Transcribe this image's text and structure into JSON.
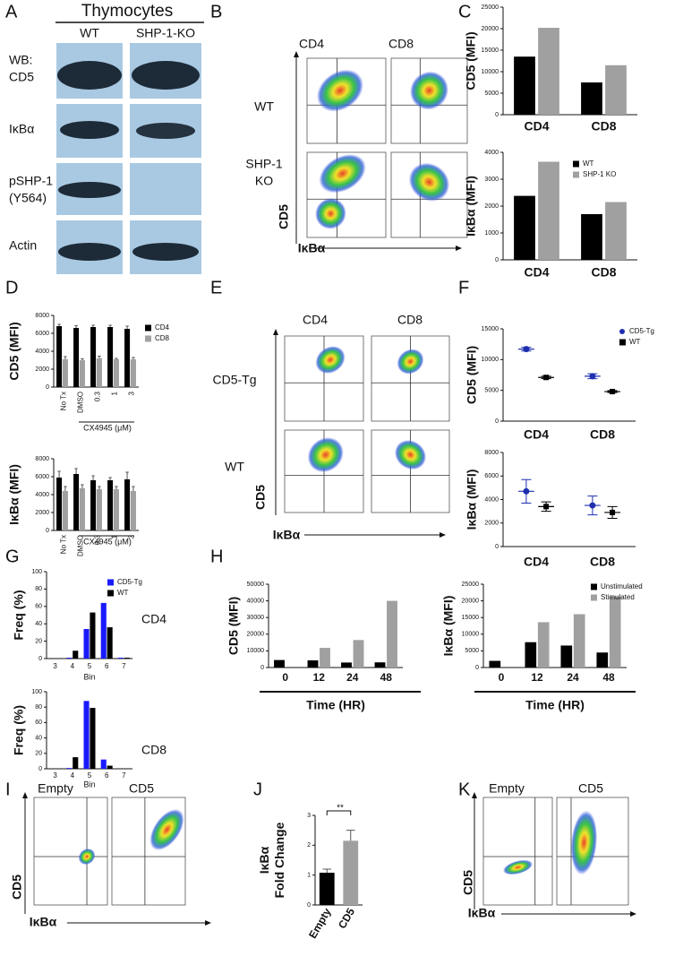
{
  "panels": [
    "A",
    "B",
    "C",
    "D",
    "E",
    "F",
    "G",
    "H",
    "I",
    "J",
    "K"
  ],
  "blot": {
    "title": "Thymocytes",
    "lanes": [
      "WT",
      "SHP-1-KO"
    ],
    "header": "WB:",
    "rows": [
      {
        "label": "CD5"
      },
      {
        "label": "IκBα"
      },
      {
        "label": "pSHP-1",
        "sublabel": "(Y564)"
      },
      {
        "label": "Actin"
      }
    ]
  },
  "flow": {
    "B": {
      "columns": [
        "CD4",
        "CD8"
      ],
      "rows": [
        [
          "WT"
        ],
        [
          "SHP-1",
          "KO"
        ]
      ],
      "y_axis": "CD5",
      "x_axis": "IκBα"
    },
    "E": {
      "columns": [
        "CD4",
        "CD8"
      ],
      "rows": [
        [
          "CD5-Tg"
        ],
        [
          "WT"
        ]
      ],
      "y_axis": "CD5",
      "x_axis": "IκBα"
    },
    "I": {
      "columns": [
        "Empty",
        "CD5"
      ],
      "y_axis": "CD5",
      "x_axis": "IκBα"
    },
    "K": {
      "columns": [
        "Empty",
        "CD5"
      ],
      "y_axis": "CD5",
      "x_axis": "IκBα"
    }
  },
  "chart_data": [
    {
      "type": "bar",
      "ylabel": "CD5 (MFI)",
      "categories": [
        "CD4",
        "CD8"
      ],
      "series": [
        {
          "color": "#000000",
          "values": [
            13500,
            7500
          ]
        },
        {
          "color": "#a0a0a0",
          "values": [
            20200,
            11500
          ]
        }
      ],
      "ylim": [
        0,
        25000
      ],
      "yticks": [
        0,
        5000,
        10000,
        15000,
        20000,
        25000
      ]
    },
    {
      "type": "bar",
      "ylabel": "IκBα (MFI)",
      "categories": [
        "CD4",
        "CD8"
      ],
      "series": [
        {
          "name": "WT",
          "color": "#000000",
          "values": [
            2380,
            1700
          ]
        },
        {
          "name": "SHP-1 KO",
          "color": "#a0a0a0",
          "values": [
            3650,
            2150
          ]
        }
      ],
      "ylim": [
        0,
        4000
      ],
      "yticks": [
        0,
        1000,
        2000,
        3000,
        4000
      ],
      "legend": "upper right"
    },
    {
      "type": "bar",
      "ylabel": "CD5 (MFI)",
      "xlabel": "CX4945 (μM)",
      "categories": [
        "No Tx",
        "DMSO",
        "0.3",
        "1",
        "3"
      ],
      "series": [
        {
          "name": "CD4",
          "color": "#000000",
          "values": [
            6800,
            6600,
            6700,
            6700,
            6500
          ],
          "errors": [
            200,
            250,
            200,
            200,
            300
          ]
        },
        {
          "name": "CD8",
          "color": "#a0a0a0",
          "values": [
            3100,
            3000,
            3200,
            3100,
            3100
          ],
          "errors": [
            300,
            150,
            250,
            100,
            200
          ]
        }
      ],
      "ylim": [
        0,
        8000
      ],
      "yticks": [
        0,
        2000,
        4000,
        6000,
        8000
      ],
      "legend": "upper right"
    },
    {
      "type": "bar",
      "ylabel": "IκBα (MFI)",
      "xlabel": "CX4945 (μM)",
      "categories": [
        "No Tx",
        "DMSO",
        "0.3",
        "1",
        "3"
      ],
      "series": [
        {
          "color": "#000000",
          "values": [
            5900,
            6300,
            5600,
            5600,
            5700
          ],
          "errors": [
            700,
            600,
            500,
            300,
            800
          ]
        },
        {
          "color": "#a0a0a0",
          "values": [
            4400,
            4700,
            4600,
            4600,
            4400
          ],
          "errors": [
            500,
            400,
            300,
            300,
            500
          ]
        }
      ],
      "ylim": [
        0,
        8000
      ],
      "yticks": [
        0,
        2000,
        4000,
        6000,
        8000
      ]
    },
    {
      "type": "dot",
      "ylabel": "CD5 (MFI)",
      "categories": [
        "CD4",
        "CD8"
      ],
      "series": [
        {
          "name": "CD5-Tg",
          "color": "#1f2fb0",
          "marker": "circle",
          "values": [
            11700,
            7300
          ],
          "errors": [
            300,
            400
          ]
        },
        {
          "name": "WT",
          "color": "#000000",
          "marker": "square",
          "values": [
            7100,
            4800
          ],
          "errors": [
            200,
            150
          ]
        }
      ],
      "ylim": [
        0,
        15000
      ],
      "yticks": [
        0,
        5000,
        10000,
        15000
      ],
      "legend": "upper right"
    },
    {
      "type": "dot",
      "ylabel": "IκBα (MFI)",
      "categories": [
        "CD4",
        "CD8"
      ],
      "series": [
        {
          "color": "#1f2fb0",
          "marker": "circle",
          "values": [
            4700,
            3500
          ],
          "errors": [
            1000,
            800
          ]
        },
        {
          "color": "#000000",
          "marker": "square",
          "values": [
            3400,
            2900
          ],
          "errors": [
            400,
            500
          ]
        }
      ],
      "ylim": [
        0,
        8000
      ],
      "yticks": [
        0,
        2000,
        4000,
        6000,
        8000
      ]
    },
    {
      "type": "bar",
      "ylabel": "Freq (%)",
      "xlabel": "Bin",
      "annotation": "CD4",
      "categories": [
        "3",
        "4",
        "5",
        "6",
        "7"
      ],
      "series": [
        {
          "name": "CD5-Tg",
          "color": "#1a1aff",
          "values": [
            0,
            1,
            34,
            64,
            1
          ]
        },
        {
          "name": "WT",
          "color": "#000000",
          "values": [
            0,
            9,
            53,
            36,
            1
          ]
        }
      ],
      "ylim": [
        0,
        100
      ],
      "yticks": [
        0,
        20,
        40,
        60,
        80,
        100
      ],
      "legend": "upper right"
    },
    {
      "type": "bar",
      "ylabel": "Freq (%)",
      "xlabel": "Bin",
      "annotation": "CD8",
      "categories": [
        "3",
        "4",
        "5",
        "6",
        "7"
      ],
      "series": [
        {
          "color": "#1a1aff",
          "values": [
            0,
            1,
            88,
            12,
            0
          ]
        },
        {
          "color": "#000000",
          "values": [
            0,
            15,
            79,
            4,
            0
          ]
        }
      ],
      "ylim": [
        0,
        100
      ],
      "yticks": [
        0,
        20,
        40,
        60,
        80,
        100
      ]
    },
    {
      "type": "bar",
      "ylabel": "CD5 (MFI)",
      "xlabel": "Time (HR)",
      "categories": [
        "0",
        "12",
        "24",
        "48"
      ],
      "series": [
        {
          "color": "#000000",
          "values": [
            4500,
            4300,
            3000,
            3100
          ]
        },
        {
          "color": "#a0a0a0",
          "values": [
            null,
            11800,
            16500,
            40000
          ]
        }
      ],
      "ylim": [
        0,
        50000
      ],
      "yticks": [
        0,
        10000,
        20000,
        30000,
        40000,
        50000
      ]
    },
    {
      "type": "bar",
      "ylabel": "IκBα (MFI)",
      "xlabel": "Time (HR)",
      "categories": [
        "0",
        "12",
        "24",
        "48"
      ],
      "series": [
        {
          "name": "Unstimulated",
          "color": "#000000",
          "values": [
            2000,
            7600,
            6600,
            4500
          ]
        },
        {
          "name": "Stimulated",
          "color": "#a0a0a0",
          "values": [
            null,
            13600,
            16000,
            21300
          ]
        }
      ],
      "ylim": [
        0,
        25000
      ],
      "yticks": [
        0,
        5000,
        10000,
        15000,
        20000,
        25000
      ],
      "legend": "upper right"
    },
    {
      "type": "bar",
      "ylabel": [
        "IκBα",
        "Fold Change"
      ],
      "annotation": "**",
      "categories": [
        "Empty",
        "CD5"
      ],
      "values": [
        1.08,
        2.15
      ],
      "errors": [
        0.12,
        0.35
      ],
      "colors": [
        "#000000",
        "#a0a0a0"
      ],
      "ylim": [
        0,
        3
      ],
      "yticks": [
        0,
        1,
        2,
        3
      ]
    }
  ]
}
